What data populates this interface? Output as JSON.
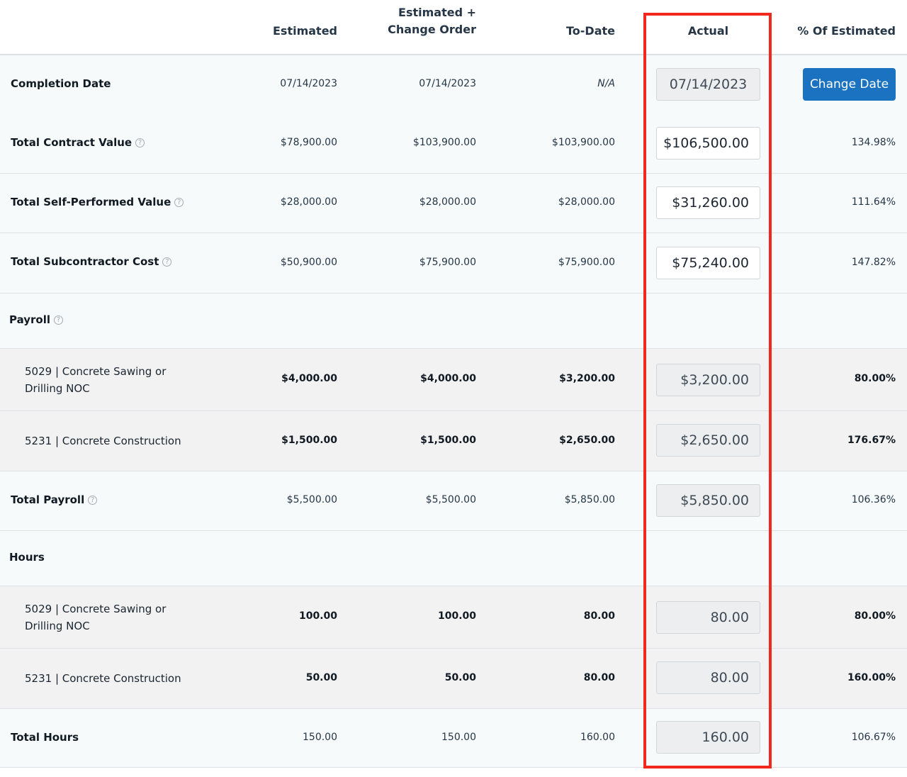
{
  "header": {
    "estimated": "Estimated",
    "estimated_co_line1": "Estimated +",
    "estimated_co_line2": "Change Order",
    "to_date": "To-Date",
    "actual": "Actual",
    "pct": "% Of Estimated"
  },
  "completion": {
    "label": "Completion Date",
    "estimated": "07/14/2023",
    "estimated_co": "07/14/2023",
    "to_date": "N/A",
    "actual": "07/14/2023",
    "button": "Change Date"
  },
  "contract": {
    "label": "Total Contract Value",
    "estimated": "$78,900.00",
    "estimated_co": "$103,900.00",
    "to_date": "$103,900.00",
    "actual": "$106,500.00",
    "pct": "134.98%"
  },
  "self_performed": {
    "label": "Total Self-Performed Value",
    "estimated": "$28,000.00",
    "estimated_co": "$28,000.00",
    "to_date": "$28,000.00",
    "actual": "$31,260.00",
    "pct": "111.64%"
  },
  "subcontractor": {
    "label": "Total Subcontractor Cost",
    "estimated": "$50,900.00",
    "estimated_co": "$75,900.00",
    "to_date": "$75,900.00",
    "actual": "$75,240.00",
    "pct": "147.82%"
  },
  "payroll": {
    "section_label": "Payroll",
    "items": [
      {
        "line1": "5029 | Concrete Sawing or",
        "line2": "Drilling NOC",
        "estimated": "$4,000.00",
        "estimated_co": "$4,000.00",
        "to_date": "$3,200.00",
        "actual": "$3,200.00",
        "pct": "80.00%"
      },
      {
        "line1": "5231 | Concrete Construction",
        "line2": "",
        "estimated": "$1,500.00",
        "estimated_co": "$1,500.00",
        "to_date": "$2,650.00",
        "actual": "$2,650.00",
        "pct": "176.67%"
      }
    ],
    "total": {
      "label": "Total Payroll",
      "estimated": "$5,500.00",
      "estimated_co": "$5,500.00",
      "to_date": "$5,850.00",
      "actual": "$5,850.00",
      "pct": "106.36%"
    }
  },
  "hours": {
    "section_label": "Hours",
    "items": [
      {
        "line1": "5029 | Concrete Sawing or",
        "line2": "Drilling NOC",
        "estimated": "100.00",
        "estimated_co": "100.00",
        "to_date": "80.00",
        "actual": "80.00",
        "pct": "80.00%"
      },
      {
        "line1": "5231 | Concrete Construction",
        "line2": "",
        "estimated": "50.00",
        "estimated_co": "50.00",
        "to_date": "80.00",
        "actual": "80.00",
        "pct": "160.00%"
      }
    ],
    "total": {
      "label": "Total Hours",
      "estimated": "150.00",
      "estimated_co": "150.00",
      "to_date": "160.00",
      "actual": "160.00",
      "pct": "106.67%"
    }
  },
  "icons": {
    "help": "question-circle-icon"
  },
  "colors": {
    "highlight": "#f0281e",
    "button": "#1a72c0"
  }
}
